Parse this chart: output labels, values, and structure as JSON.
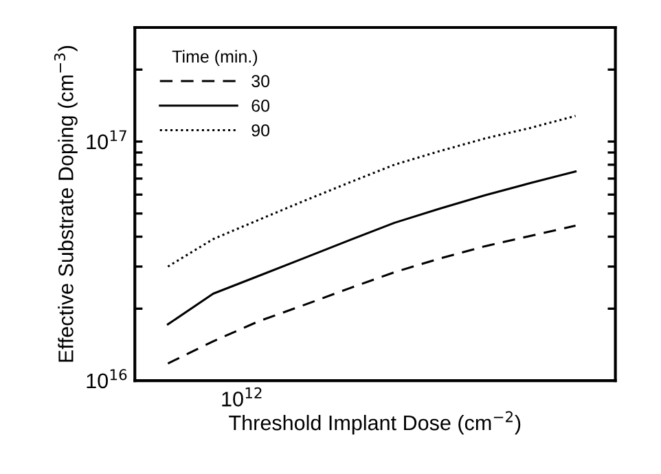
{
  "chart_data": {
    "type": "line",
    "xlabel": "Threshold Implant Dose (cm$^{−2}$)",
    "ylabel": "Effective Substrate Doping (cm$^{−3}$)",
    "legend_title": "Time (min.)",
    "legend": "top left",
    "log": "y",
    "grid": false,
    "tick_labels": "y",
    "annotations": [
      "10$^{12}$"
    ],
    "categories": [
      null,
      null,
      null,
      null,
      null,
      null,
      null,
      null,
      null,
      null
    ],
    "ylim": [
      1e+16,
      3e+17
    ],
    "yticks": [
      {
        "value": 1e+16,
        "label": "10$^{16}$"
      },
      {
        "value": 2e+16,
        "label": null
      },
      {
        "value": 3e+16,
        "label": null
      },
      {
        "value": 4e+16,
        "label": null
      },
      {
        "value": 5e+16,
        "label": null
      },
      {
        "value": 6e+16,
        "label": null
      },
      {
        "value": 7e+16,
        "label": null
      },
      {
        "value": 8e+16,
        "label": null
      },
      {
        "value": 9e+16,
        "label": null
      },
      {
        "value": 1e+17,
        "label": "10$^{17}$"
      },
      {
        "value": 2e+17,
        "label": null
      }
    ],
    "series": [
      {
        "name": "30",
        "color": "#000000",
        "line_style": "dashed",
        "values": [
          1.18e+16,
          1.46e+16,
          1.77e+16,
          2.07e+16,
          2.43e+16,
          2.84e+16,
          3.24e+16,
          3.65e+16,
          4.03e+16,
          4.45e+16
        ]
      },
      {
        "name": "60",
        "color": "#000000",
        "line_style": "solid",
        "values": [
          1.72e+16,
          2.31e+16,
          2.74e+16,
          3.25e+16,
          3.86e+16,
          4.57e+16,
          5.24e+16,
          5.96e+16,
          6.7e+16,
          7.5e+16
        ]
      },
      {
        "name": "90",
        "color": "#000000",
        "line_style": "dotted",
        "values": [
          3e+16,
          3.91e+16,
          4.7e+16,
          5.64e+16,
          6.73e+16,
          8e+16,
          9.12e+16,
          1.03e+17,
          1.14e+17,
          1.28e+17
        ]
      }
    ]
  }
}
